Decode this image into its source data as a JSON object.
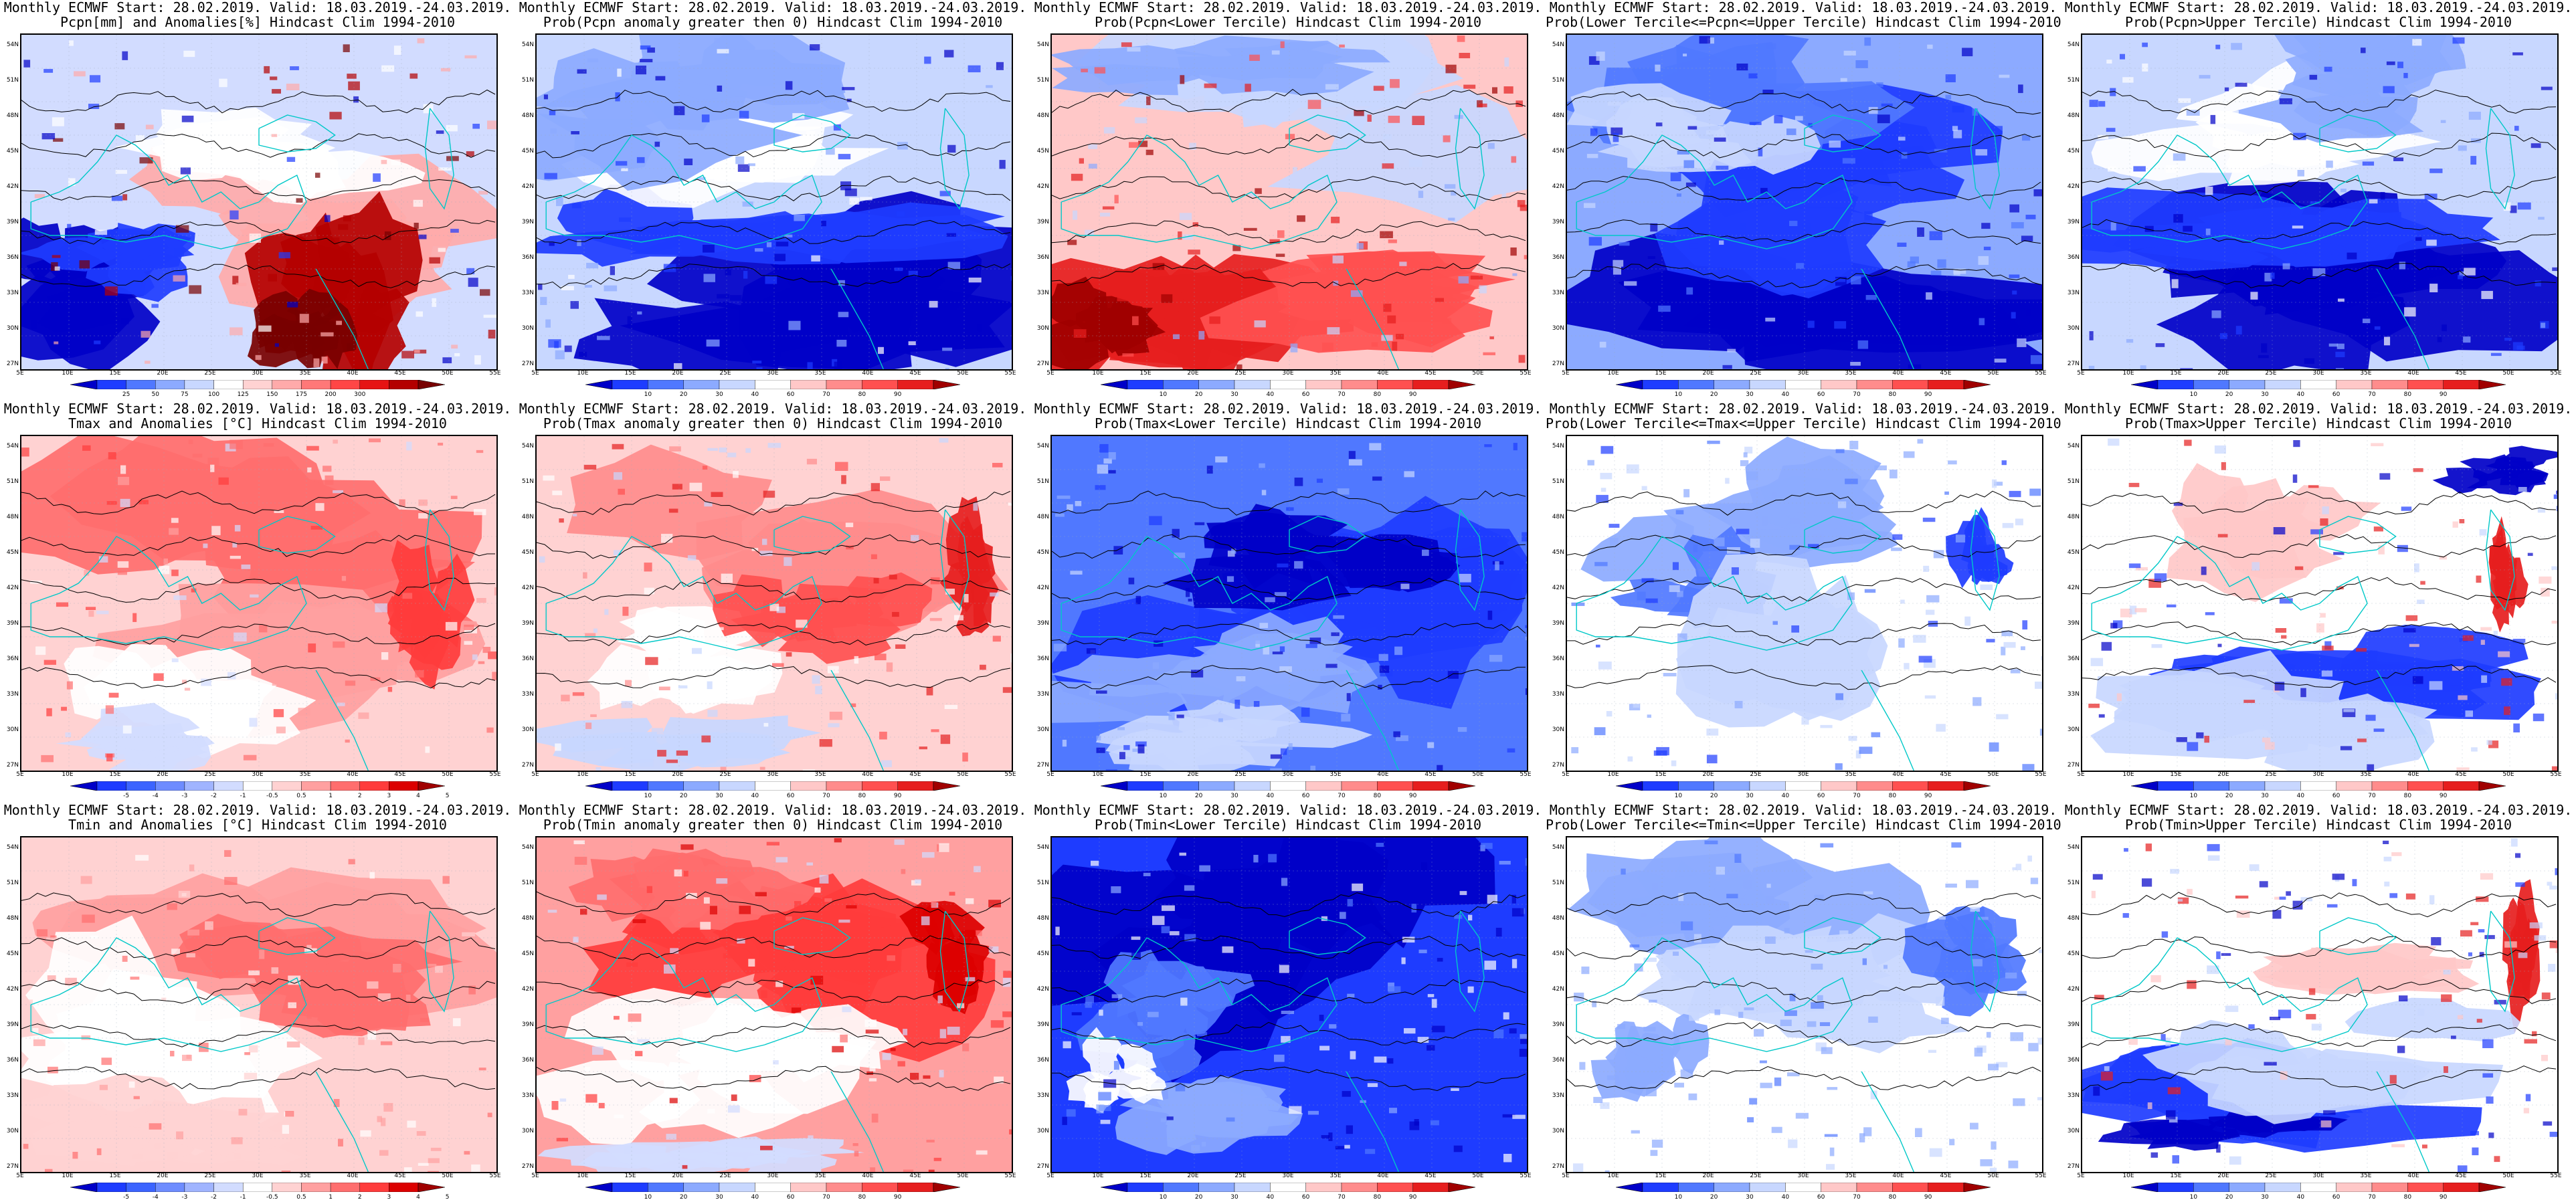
{
  "header_common": "Monthly ECMWF Start: 28.02.2019. Valid: 18.03.2019.-24.03.2019.",
  "y_ticks": [
    "54N",
    "51N",
    "48N",
    "45N",
    "42N",
    "39N",
    "36N",
    "33N",
    "30N",
    "27N"
  ],
  "x_ticks": [
    "5E",
    "10E",
    "15E",
    "20E",
    "25E",
    "30E",
    "35E",
    "40E",
    "45E",
    "50E",
    "55E"
  ],
  "colorbars": {
    "prob": [
      "10",
      "20",
      "30",
      "40",
      "60",
      "70",
      "80",
      "90"
    ],
    "pcpn": [
      "25",
      "50",
      "75",
      "100",
      "125",
      "150",
      "175",
      "200",
      "300"
    ],
    "temp": [
      "-5",
      "-4",
      "-3",
      "-2",
      "-1",
      "-0.5",
      "0.5",
      "1",
      "2",
      "3",
      "4",
      "5"
    ],
    "colors_prob": [
      "#0000c8",
      "#1e3cff",
      "#5078ff",
      "#8caaff",
      "#c8d7ff",
      "#ffffff",
      "#ffc8c8",
      "#ff8c8c",
      "#ff5050",
      "#e61e1e",
      "#a00000"
    ],
    "colors_pcpn": [
      "#0000c8",
      "#1e3cff",
      "#5078ff",
      "#8caaff",
      "#c8d7ff",
      "#ffffff",
      "#ffd2d2",
      "#ffaaaa",
      "#ff7878",
      "#ff4646",
      "#e61414",
      "#b40000",
      "#780000"
    ],
    "colors_temp": [
      "#0000c8",
      "#1e3cff",
      "#3c64ff",
      "#6e8cff",
      "#a0b4ff",
      "#d2dcff",
      "#ffffff",
      "#ffd2d2",
      "#ffa0a0",
      "#ff6e6e",
      "#ff3c3c",
      "#dc0000",
      "#a00000"
    ]
  },
  "panels": [
    {
      "title2": "Pcpn[mm] and Anomalies[%] Hindcast Clim 1994-2010",
      "cbar": "pcpn"
    },
    {
      "title2": "Prob(Pcpn anomaly greater then 0) Hindcast Clim 1994-2010",
      "cbar": "prob"
    },
    {
      "title2": "Prob(Pcpn<Lower Tercile) Hindcast Clim 1994-2010",
      "cbar": "prob"
    },
    {
      "title2": "Prob(Lower Tercile<=Pcpn<=Upper Tercile) Hindcast Clim 1994-2010",
      "cbar": "prob"
    },
    {
      "title2": "Prob(Pcpn>Upper Tercile) Hindcast Clim 1994-2010",
      "cbar": "prob"
    },
    {
      "title2": "Tmax and Anomalies [°C] Hindcast Clim 1994-2010",
      "cbar": "temp"
    },
    {
      "title2": "Prob(Tmax anomaly greater then 0) Hindcast Clim 1994-2010",
      "cbar": "prob"
    },
    {
      "title2": "Prob(Tmax<Lower Tercile) Hindcast Clim 1994-2010",
      "cbar": "prob"
    },
    {
      "title2": "Prob(Lower Tercile<=Tmax<=Upper Tercile) Hindcast Clim 1994-2010",
      "cbar": "prob"
    },
    {
      "title2": "Prob(Tmax>Upper Tercile) Hindcast Clim 1994-2010",
      "cbar": "prob"
    },
    {
      "title2": "Tmin and Anomalies [°C] Hindcast Clim 1994-2010",
      "cbar": "temp"
    },
    {
      "title2": "Prob(Tmin anomaly greater then 0) Hindcast Clim 1994-2010",
      "cbar": "prob"
    },
    {
      "title2": "Prob(Tmin<Lower Tercile) Hindcast Clim 1994-2010",
      "cbar": "prob"
    },
    {
      "title2": "Prob(Lower Tercile<=Tmin<=Upper Tercile) Hindcast Clim 1994-2010",
      "cbar": "prob"
    },
    {
      "title2": "Prob(Tmin>Upper Tercile) Hindcast Clim 1994-2010",
      "cbar": "prob"
    }
  ]
}
